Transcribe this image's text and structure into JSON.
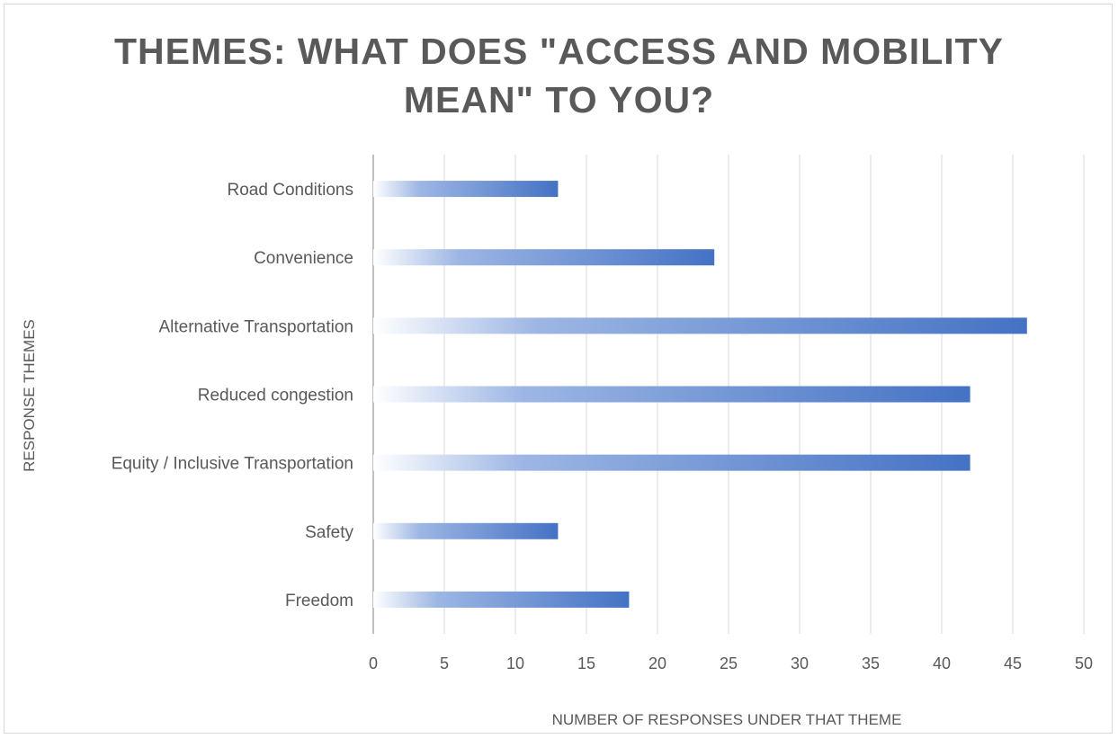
{
  "chart_data": {
    "type": "bar",
    "orientation": "horizontal",
    "title_lines": [
      "THEMES: WHAT DOES \"ACCESS AND MOBILITY",
      "MEAN\" TO YOU?"
    ],
    "xlabel": "NUMBER OF RESPONSES UNDER THAT THEME",
    "ylabel": "RESPONSE THEMES",
    "categories": [
      "Road Conditions",
      "Convenience",
      "Alternative Transportation",
      "Reduced congestion",
      "Equity / Inclusive Transportation",
      "Safety",
      "Freedom"
    ],
    "values": [
      13,
      24,
      46,
      42,
      42,
      13,
      18
    ],
    "xlim": [
      0,
      50
    ],
    "xticks": [
      0,
      5,
      10,
      15,
      20,
      25,
      30,
      35,
      40,
      45,
      50
    ],
    "grid": true,
    "legend": "none",
    "bar_color": "#4472c4",
    "bar_fill": "gradient-white-to-blue"
  }
}
